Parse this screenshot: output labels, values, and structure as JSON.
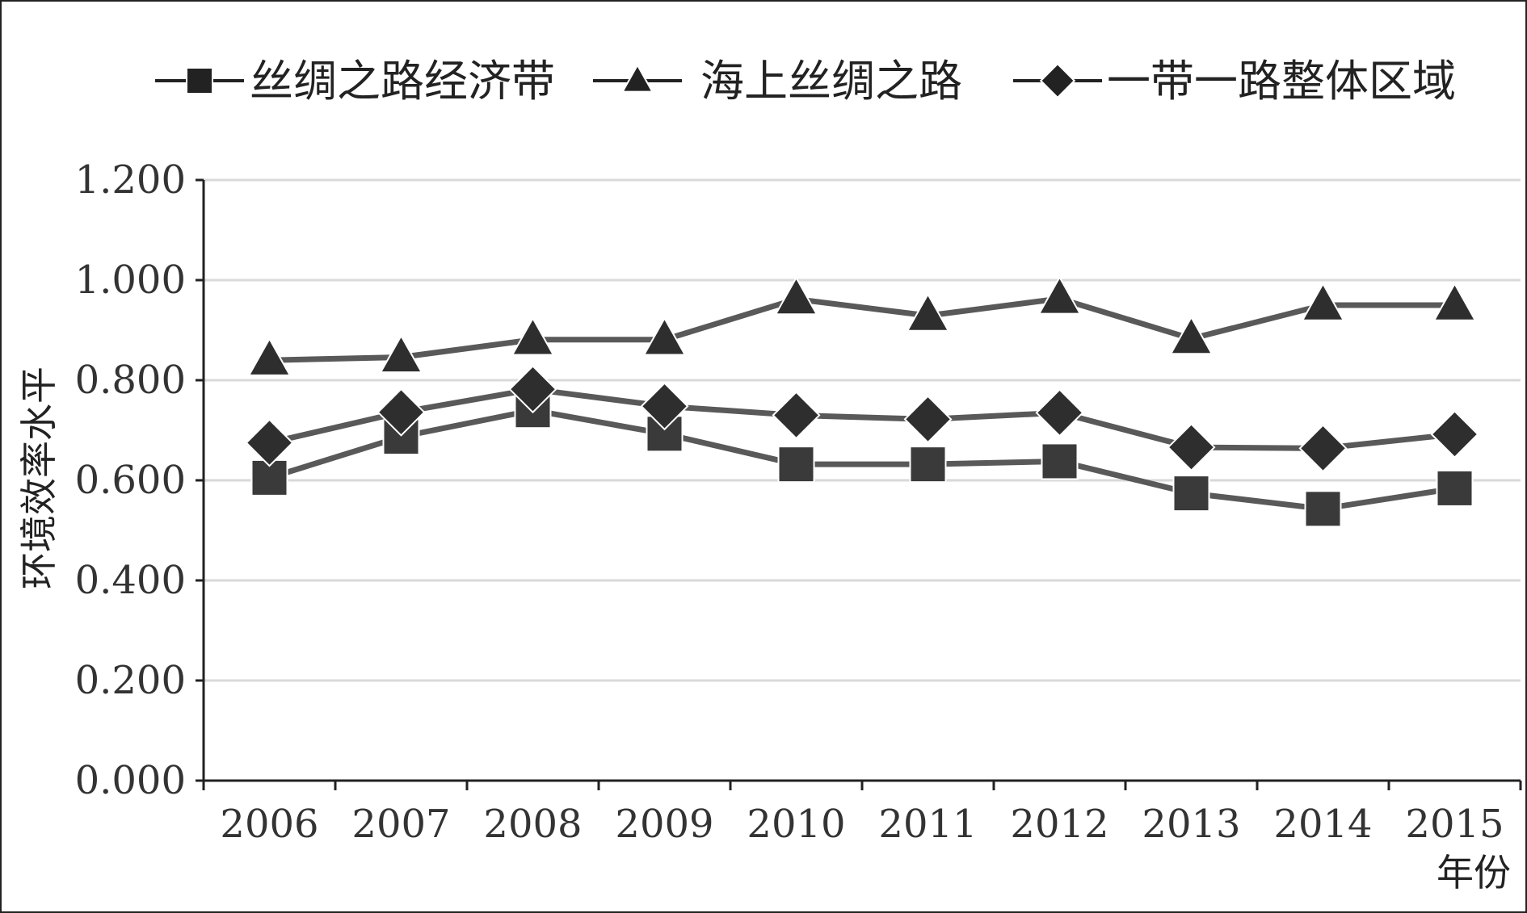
{
  "chart_data": {
    "type": "line",
    "title": "",
    "xlabel": "年份",
    "ylabel": "环境效率水平",
    "ylim": [
      0,
      1.2
    ],
    "y_ticks": [
      "0.000",
      "0.200",
      "0.400",
      "0.600",
      "0.800",
      "1.000",
      "1.200"
    ],
    "y_tick_values": [
      0,
      0.2,
      0.4,
      0.6,
      0.8,
      1.0,
      1.2
    ],
    "categories": [
      "2006",
      "2007",
      "2008",
      "2009",
      "2010",
      "2011",
      "2012",
      "2013",
      "2014",
      "2015"
    ],
    "grid": true,
    "legend_position": "top",
    "series": [
      {
        "name": "丝绸之路经济带",
        "marker": "square",
        "color": "#595959",
        "marker_color": "#3a3a3a",
        "values": [
          0.605,
          0.687,
          0.74,
          0.693,
          0.632,
          0.632,
          0.638,
          0.574,
          0.543,
          0.584
        ]
      },
      {
        "name": "海上丝绸之路",
        "marker": "triangle",
        "color": "#595959",
        "marker_color": "#2e2e2e",
        "values": [
          0.84,
          0.846,
          0.881,
          0.881,
          0.962,
          0.929,
          0.963,
          0.883,
          0.95,
          0.95
        ]
      },
      {
        "name": "一带一路整体区域",
        "marker": "diamond",
        "color": "#595959",
        "marker_color": "#2e2e2e",
        "values": [
          0.675,
          0.736,
          0.782,
          0.748,
          0.73,
          0.722,
          0.735,
          0.666,
          0.664,
          0.692
        ]
      }
    ]
  }
}
